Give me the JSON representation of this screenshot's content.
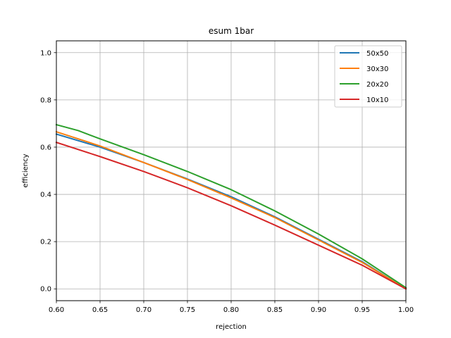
{
  "chart_data": {
    "type": "line",
    "title": "esum 1bar",
    "xlabel": "rejection",
    "ylabel": "efficiency",
    "xlim": [
      0.6,
      1.0
    ],
    "ylim": [
      -0.05,
      1.05
    ],
    "xticks": [
      0.6,
      0.65,
      0.7,
      0.75,
      0.8,
      0.85,
      0.9,
      0.95,
      1.0
    ],
    "xtick_labels": [
      "0.60",
      "0.65",
      "0.70",
      "0.75",
      "0.80",
      "0.85",
      "0.90",
      "0.95",
      "1.00"
    ],
    "yticks": [
      0.0,
      0.2,
      0.4,
      0.6,
      0.8,
      1.0
    ],
    "ytick_labels": [
      "0.0",
      "0.2",
      "0.4",
      "0.6",
      "0.8",
      "1.0"
    ],
    "grid": true,
    "legend_position": "top-right",
    "series": [
      {
        "name": "50x50",
        "color": "#1f77b4",
        "x": [
          0.6,
          0.65,
          0.7,
          0.75,
          0.8,
          0.85,
          0.9,
          0.95,
          1.0
        ],
        "y": [
          0.655,
          0.6,
          0.535,
          0.465,
          0.39,
          0.305,
          0.21,
          0.115,
          0.0
        ]
      },
      {
        "name": "30x30",
        "color": "#ff7f0e",
        "x": [
          0.6,
          0.65,
          0.7,
          0.75,
          0.8,
          0.85,
          0.9,
          0.95,
          1.0
        ],
        "y": [
          0.665,
          0.605,
          0.535,
          0.463,
          0.385,
          0.302,
          0.207,
          0.112,
          0.0
        ]
      },
      {
        "name": "20x20",
        "color": "#2ca02c",
        "x": [
          0.6,
          0.625,
          0.65,
          0.7,
          0.75,
          0.8,
          0.85,
          0.9,
          0.95,
          1.0
        ],
        "y": [
          0.695,
          0.67,
          0.635,
          0.568,
          0.497,
          0.42,
          0.33,
          0.232,
          0.127,
          0.005
        ]
      },
      {
        "name": "10x10",
        "color": "#d62728",
        "x": [
          0.6,
          0.65,
          0.7,
          0.75,
          0.8,
          0.85,
          0.9,
          0.95,
          1.0
        ],
        "y": [
          0.62,
          0.56,
          0.497,
          0.428,
          0.352,
          0.27,
          0.185,
          0.1,
          0.0
        ]
      }
    ]
  }
}
